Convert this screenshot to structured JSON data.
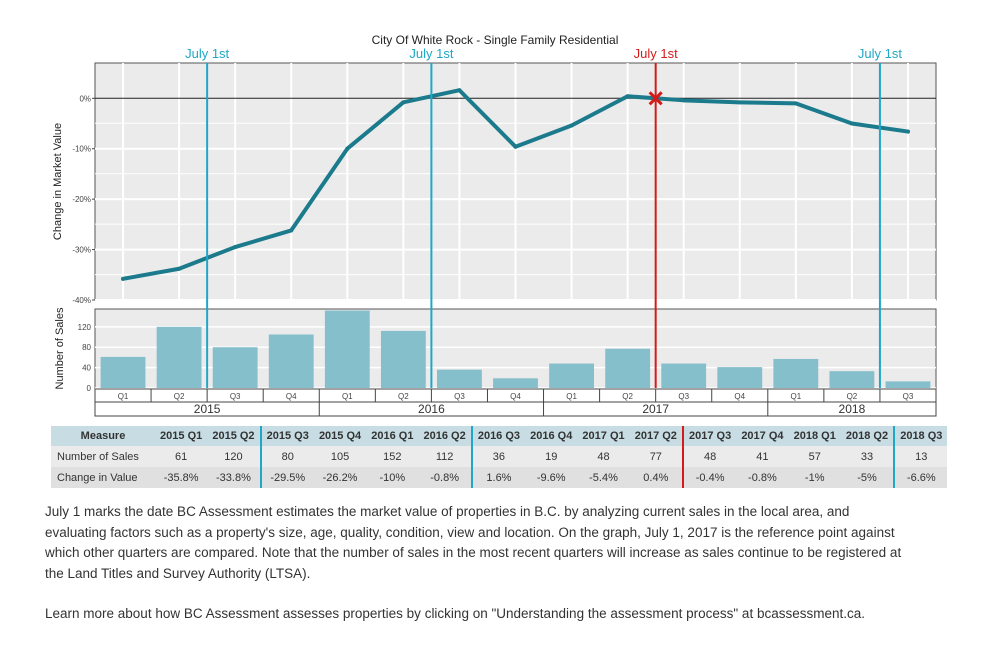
{
  "chart_data": {
    "type": "line",
    "title": "City Of White Rock - Single Family Residential",
    "categories": [
      "2015 Q1",
      "2015 Q2",
      "2015 Q3",
      "2015 Q4",
      "2016 Q1",
      "2016 Q2",
      "2016 Q3",
      "2016 Q4",
      "2017 Q1",
      "2017 Q2",
      "2017 Q3",
      "2017 Q4",
      "2018 Q1",
      "2018 Q2",
      "2018 Q3"
    ],
    "quarter_ticks": [
      "Q1",
      "Q2",
      "Q3",
      "Q4",
      "Q1",
      "Q2",
      "Q3",
      "Q4",
      "Q1",
      "Q2",
      "Q3",
      "Q4",
      "Q1",
      "Q2",
      "Q3"
    ],
    "years": [
      "2015",
      "2016",
      "2017",
      "2018"
    ],
    "panels": [
      {
        "type": "line",
        "ylabel": "Change in Market Value",
        "ylim": [
          -40,
          7
        ],
        "yticks": [
          0,
          -10,
          -20,
          -30,
          -40
        ],
        "ytick_labels": [
          "0%",
          "-10%",
          "-20%",
          "-30%",
          "-40%"
        ],
        "series": [
          {
            "values": [
              -35.8,
              -33.8,
              -29.5,
              -26.2,
              -10,
              -0.8,
              1.6,
              -9.6,
              -5.4,
              0.4,
              -0.4,
              -0.8,
              -1,
              -5,
              -6.6
            ]
          }
        ],
        "reference_marker": "2017 Q2",
        "grid": true
      },
      {
        "type": "bar",
        "ylabel": "Number of Sales",
        "ylim": [
          0,
          155
        ],
        "yticks": [
          0,
          40,
          80,
          120
        ],
        "ytick_labels": [
          "0",
          "40",
          "80",
          "120"
        ],
        "values": [
          61,
          120,
          80,
          105,
          152,
          112,
          36,
          19,
          48,
          77,
          48,
          41,
          57,
          33,
          13
        ],
        "grid": true
      }
    ],
    "vertical_lines": [
      {
        "label": "July 1st",
        "color": "#1fa7c7"
      },
      {
        "label": "July 1st",
        "color": "#1fa7c7"
      },
      {
        "label": "July 1st",
        "color": "#d61a1a"
      },
      {
        "label": "July 1st",
        "color": "#1fa7c7"
      }
    ],
    "colors": {
      "line": "#1b7b8c",
      "bar": "#86bfcc",
      "panel_bg": "#ebebeb",
      "blue_line": "#1fa7c7",
      "red_line": "#d61a1a"
    }
  },
  "table": {
    "headers": [
      "Measure",
      "2015 Q1",
      "2015 Q2",
      "2015 Q3",
      "2015 Q4",
      "2016 Q1",
      "2016 Q2",
      "2016 Q3",
      "2016 Q4",
      "2017 Q1",
      "2017 Q2",
      "2017 Q3",
      "2017 Q4",
      "2018 Q1",
      "2018 Q2",
      "2018 Q3"
    ],
    "rows": [
      [
        "Number of Sales",
        "61",
        "120",
        "80",
        "105",
        "152",
        "112",
        "36",
        "19",
        "48",
        "77",
        "48",
        "41",
        "57",
        "33",
        "13"
      ],
      [
        "Change in Value",
        "-35.8%",
        "-33.8%",
        "-29.5%",
        "-26.2%",
        "-10%",
        "-0.8%",
        "1.6%",
        "-9.6%",
        "-5.4%",
        "0.4%",
        "-0.4%",
        "-0.8%",
        "-1%",
        "-5%",
        "-6.6%"
      ]
    ]
  },
  "notes": {
    "paragraph1": "July 1 marks the date BC Assessment estimates the market value of properties in B.C. by analyzing current sales in the local area, and evaluating factors such as a property's size, age, quality, condition, view and location. On the graph, July 1, 2017 is the reference point against which other quarters are compared. Note that the number of sales in the most recent quarters will increase as sales continue to be registered at the Land Titles and Survey Authority (LTSA).",
    "paragraph2": "Learn more about how BC Assessment assesses properties by clicking on \"Understanding the assessment process\" at bcassessment.ca."
  }
}
